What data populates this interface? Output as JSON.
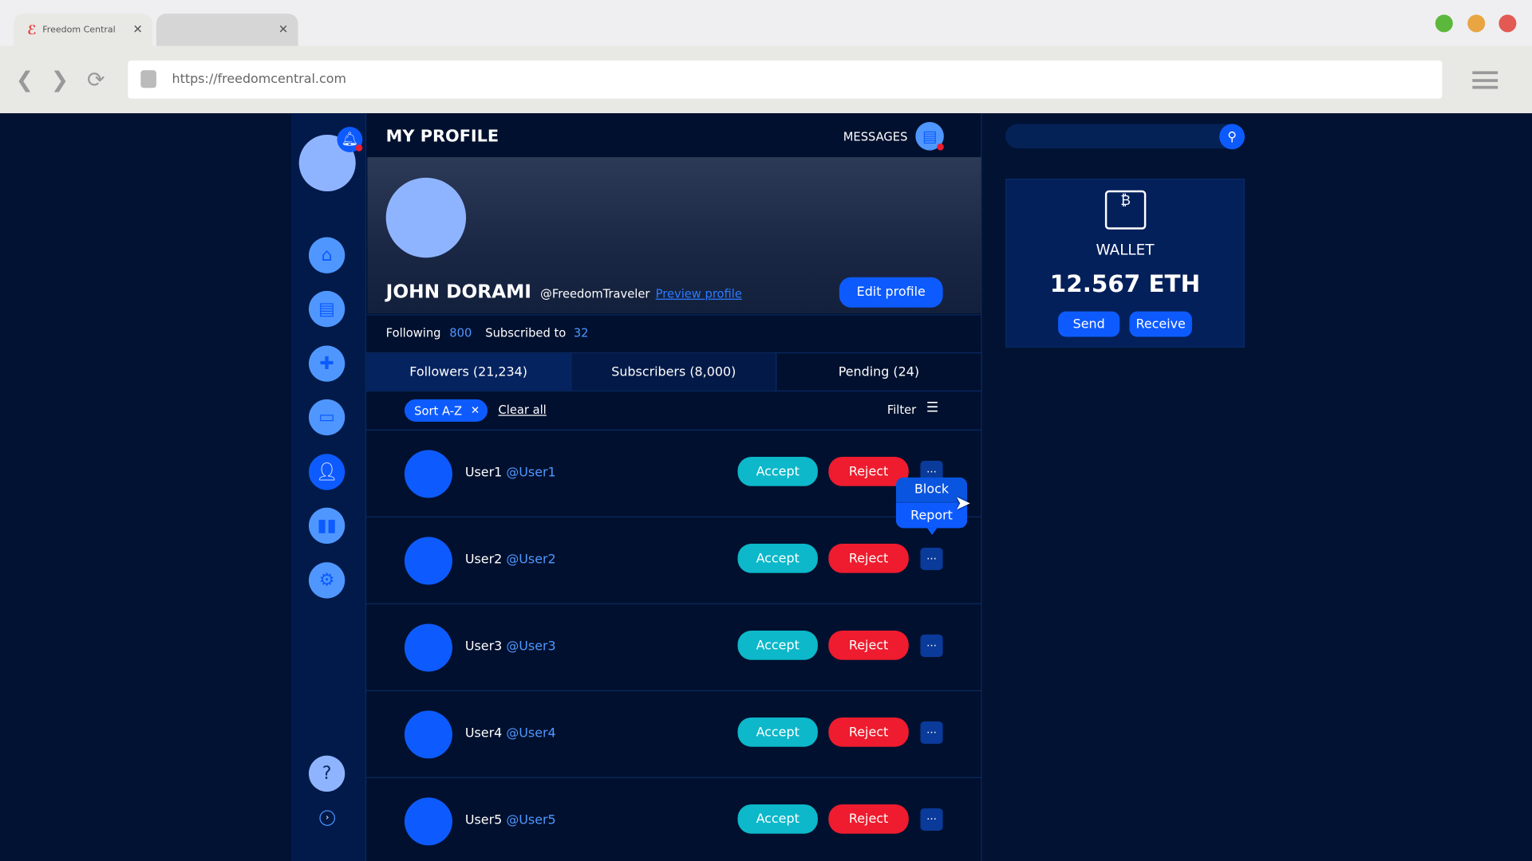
{
  "browser": {
    "tab_title": "Freedom Central",
    "url": "https://freedomcentral.com",
    "window_colors": [
      "#5cb83c",
      "#e8a542",
      "#e25a53"
    ]
  },
  "header": {
    "title": "MY PROFILE",
    "messages_label": "MESSAGES"
  },
  "profile": {
    "name": "JOHN DORAMI",
    "handle": "@FreedomTraveler",
    "preview_link": "Preview profile",
    "edit_button": "Edit profile",
    "following_label": "Following",
    "following_count": "800",
    "subscribed_label": "Subscribed to",
    "subscribed_count": "32"
  },
  "tabs": [
    {
      "label": "Followers  (21,234)"
    },
    {
      "label": "Subscribers  (8,000)"
    },
    {
      "label": "Pending  (24)"
    }
  ],
  "filters": {
    "chip": "Sort A-Z",
    "clear": "Clear all",
    "filter": "Filter"
  },
  "users": [
    {
      "name": "User1",
      "handle": "@User1"
    },
    {
      "name": "User2",
      "handle": "@User2"
    },
    {
      "name": "User3",
      "handle": "@User3"
    },
    {
      "name": "User4",
      "handle": "@User4"
    },
    {
      "name": "User5",
      "handle": "@User5"
    }
  ],
  "actions": {
    "accept": "Accept",
    "reject": "Reject",
    "more": "···"
  },
  "dropdown": {
    "items": [
      "Block",
      "Report"
    ]
  },
  "wallet": {
    "title": "WALLET",
    "balance": "12.567 ETH",
    "send": "Send",
    "receive": "Receive"
  },
  "colors": {
    "accent": "#0d5bff",
    "accept": "#0cb8c9",
    "reject": "#ee1c2e",
    "background": "#011233"
  }
}
